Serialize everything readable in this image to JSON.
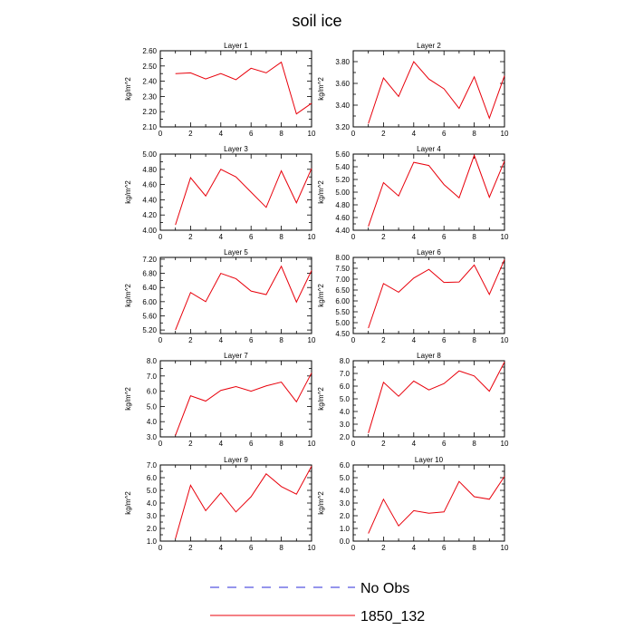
{
  "title": "soil ice",
  "ylabel": "kg/m^2",
  "xticks": [
    "0",
    "2",
    "4",
    "6",
    "8",
    "10"
  ],
  "x": [
    1,
    2,
    3,
    4,
    5,
    6,
    7,
    8,
    9,
    10
  ],
  "line_color": "#e8000b",
  "obs_color": "#2b2bd9",
  "legend": [
    {
      "label": "No Obs",
      "style": "dashed"
    },
    {
      "label": "1850_132",
      "style": "solid"
    }
  ],
  "chart_data": [
    {
      "type": "line",
      "title": "Layer 1",
      "ylabel": "kg/m^2",
      "xlim": [
        0,
        10
      ],
      "ylim": [
        2.1,
        2.6
      ],
      "yticks": [
        "2.10",
        "2.20",
        "2.30",
        "2.40",
        "2.50",
        "2.60"
      ],
      "series": [
        {
          "name": "1850_132",
          "x": [
            1,
            2,
            3,
            4,
            5,
            6,
            7,
            8,
            9,
            10
          ],
          "values": [
            2.45,
            2.455,
            2.415,
            2.45,
            2.41,
            2.485,
            2.455,
            2.525,
            2.185,
            2.255
          ]
        }
      ]
    },
    {
      "type": "line",
      "title": "Layer 2",
      "ylabel": "kg/m^2",
      "xlim": [
        0,
        10
      ],
      "ylim": [
        3.2,
        3.9
      ],
      "yticks": [
        "3.20",
        "3.40",
        "3.60",
        "3.80"
      ],
      "series": [
        {
          "name": "1850_132",
          "x": [
            1,
            2,
            3,
            4,
            5,
            6,
            7,
            8,
            9,
            10
          ],
          "values": [
            3.23,
            3.65,
            3.48,
            3.8,
            3.64,
            3.55,
            3.37,
            3.66,
            3.28,
            3.67
          ]
        }
      ]
    },
    {
      "type": "line",
      "title": "Layer 3",
      "ylabel": "kg/m^2",
      "xlim": [
        0,
        10
      ],
      "ylim": [
        4.0,
        5.0
      ],
      "yticks": [
        "4.00",
        "4.20",
        "4.40",
        "4.60",
        "4.80",
        "5.00"
      ],
      "series": [
        {
          "name": "1850_132",
          "x": [
            1,
            2,
            3,
            4,
            5,
            6,
            7,
            8,
            9,
            10
          ],
          "values": [
            4.07,
            4.69,
            4.45,
            4.8,
            4.7,
            4.5,
            4.3,
            4.78,
            4.36,
            4.81
          ]
        }
      ]
    },
    {
      "type": "line",
      "title": "Layer 4",
      "ylabel": "kg/m^2",
      "xlim": [
        0,
        10
      ],
      "ylim": [
        4.4,
        5.6
      ],
      "yticks": [
        "4.40",
        "4.60",
        "4.80",
        "5.00",
        "5.20",
        "5.40",
        "5.60"
      ],
      "series": [
        {
          "name": "1850_132",
          "x": [
            1,
            2,
            3,
            4,
            5,
            6,
            7,
            8,
            9,
            10
          ],
          "values": [
            4.46,
            5.15,
            4.94,
            5.47,
            5.42,
            5.12,
            4.91,
            5.58,
            4.92,
            5.49
          ]
        }
      ]
    },
    {
      "type": "line",
      "title": "Layer 5",
      "ylabel": "kg/m^2",
      "xlim": [
        0,
        10
      ],
      "ylim": [
        5.1,
        7.25
      ],
      "yticks": [
        "5.20",
        "5.60",
        "6.00",
        "6.40",
        "6.80",
        "7.20"
      ],
      "series": [
        {
          "name": "1850_132",
          "x": [
            1,
            2,
            3,
            4,
            5,
            6,
            7,
            8,
            9,
            10
          ],
          "values": [
            5.2,
            6.26,
            6.0,
            6.8,
            6.65,
            6.3,
            6.2,
            7.0,
            5.99,
            6.88
          ]
        }
      ]
    },
    {
      "type": "line",
      "title": "Layer 6",
      "ylabel": "kg/m^2",
      "xlim": [
        0,
        10
      ],
      "ylim": [
        4.5,
        8.0
      ],
      "yticks": [
        "4.50",
        "5.00",
        "5.50",
        "6.00",
        "6.50",
        "7.00",
        "7.50",
        "8.00"
      ],
      "series": [
        {
          "name": "1850_132",
          "x": [
            1,
            2,
            3,
            4,
            5,
            6,
            7,
            8,
            9,
            10
          ],
          "values": [
            4.75,
            6.8,
            6.4,
            7.05,
            7.45,
            6.85,
            6.87,
            7.65,
            6.3,
            7.9
          ]
        }
      ]
    },
    {
      "type": "line",
      "title": "Layer 7",
      "ylabel": "kg/m^2",
      "xlim": [
        0,
        10
      ],
      "ylim": [
        3.0,
        8.0
      ],
      "yticks": [
        "3.0",
        "4.0",
        "5.0",
        "6.0",
        "7.0",
        "8.0"
      ],
      "series": [
        {
          "name": "1850_132",
          "x": [
            1,
            2,
            3,
            4,
            5,
            6,
            7,
            8,
            9,
            10
          ],
          "values": [
            3.1,
            5.7,
            5.35,
            6.05,
            6.3,
            6.0,
            6.35,
            6.6,
            5.3,
            7.2
          ]
        }
      ]
    },
    {
      "type": "line",
      "title": "Layer 8",
      "ylabel": "kg/m^2",
      "xlim": [
        0,
        10
      ],
      "ylim": [
        2.0,
        8.0
      ],
      "yticks": [
        "2.0",
        "3.0",
        "4.0",
        "5.0",
        "6.0",
        "7.0",
        "8.0"
      ],
      "series": [
        {
          "name": "1850_132",
          "x": [
            1,
            2,
            3,
            4,
            5,
            6,
            7,
            8,
            9,
            10
          ],
          "values": [
            2.3,
            6.3,
            5.2,
            6.4,
            5.7,
            6.2,
            7.2,
            6.8,
            5.6,
            7.9
          ]
        }
      ]
    },
    {
      "type": "line",
      "title": "Layer 9",
      "ylabel": "kg/m^2",
      "xlim": [
        0,
        10
      ],
      "ylim": [
        1.0,
        7.0
      ],
      "yticks": [
        "1.0",
        "2.0",
        "3.0",
        "4.0",
        "5.0",
        "6.0",
        "7.0"
      ],
      "series": [
        {
          "name": "1850_132",
          "x": [
            1,
            2,
            3,
            4,
            5,
            6,
            7,
            8,
            9,
            10
          ],
          "values": [
            1.2,
            5.4,
            3.4,
            4.8,
            3.3,
            4.5,
            6.3,
            5.3,
            4.7,
            6.9
          ]
        }
      ]
    },
    {
      "type": "line",
      "title": "Layer 10",
      "ylabel": "kg/m^2",
      "xlim": [
        0,
        10
      ],
      "ylim": [
        0.0,
        6.0
      ],
      "yticks": [
        "0.0",
        "1.0",
        "2.0",
        "3.0",
        "4.0",
        "5.0",
        "6.0"
      ],
      "series": [
        {
          "name": "1850_132",
          "x": [
            1,
            2,
            3,
            4,
            5,
            6,
            7,
            8,
            9,
            10
          ],
          "values": [
            0.6,
            3.3,
            1.2,
            2.4,
            2.2,
            2.3,
            4.7,
            3.5,
            3.3,
            5.1
          ]
        }
      ]
    }
  ]
}
